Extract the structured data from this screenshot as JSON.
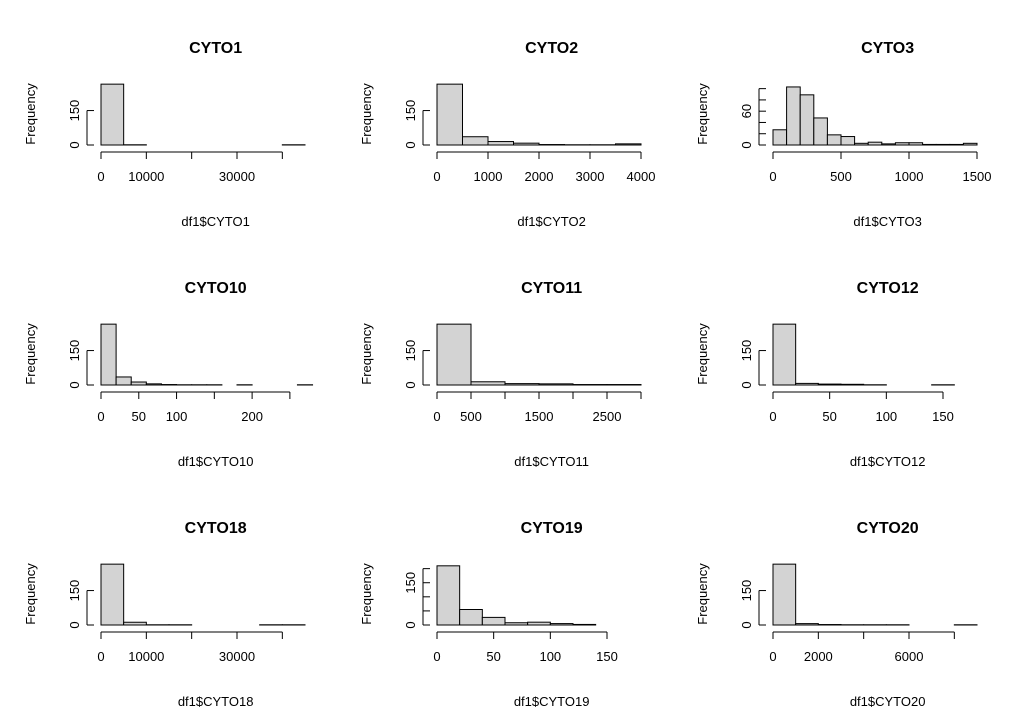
{
  "colors": {
    "bar_fill": "#d3d3d3",
    "stroke": "#000000",
    "background": "#ffffff"
  },
  "chart_data": [
    {
      "type": "bar",
      "title": "CYTO1",
      "xlabel": "df1$CYTO1",
      "ylabel": "Frequency",
      "xlim": [
        0,
        45000
      ],
      "ylim": [
        0,
        270
      ],
      "xticks": [
        0,
        10000,
        20000,
        30000,
        40000
      ],
      "xtick_labels": [
        "0",
        "10000",
        "",
        "30000",
        ""
      ],
      "yticks": [
        0,
        150
      ],
      "ytick_labels": [
        "0",
        "150"
      ],
      "bins": [
        0,
        5000,
        10000,
        15000,
        20000,
        25000,
        30000,
        35000,
        40000,
        45000
      ],
      "counts": [
        265,
        1,
        0,
        0,
        0,
        0,
        0,
        0,
        1
      ],
      "grid": false
    },
    {
      "type": "bar",
      "title": "CYTO2",
      "xlabel": "df1$CYTO2",
      "ylabel": "Frequency",
      "xlim": [
        0,
        4000
      ],
      "ylim": [
        0,
        270
      ],
      "xticks": [
        0,
        1000,
        2000,
        3000,
        4000
      ],
      "xtick_labels": [
        "0",
        "1000",
        "2000",
        "3000",
        "4000"
      ],
      "yticks": [
        0,
        150
      ],
      "ytick_labels": [
        "0",
        "150"
      ],
      "bins": [
        0,
        500,
        1000,
        1500,
        2000,
        2500,
        3000,
        3500,
        4000
      ],
      "counts": [
        265,
        36,
        15,
        8,
        2,
        1,
        1,
        5
      ],
      "grid": false
    },
    {
      "type": "bar",
      "title": "CYTO3",
      "xlabel": "df1$CYTO3",
      "ylabel": "Frequency",
      "xlim": [
        0,
        1500
      ],
      "ylim": [
        0,
        110
      ],
      "xticks": [
        0,
        500,
        1000,
        1500
      ],
      "xtick_labels": [
        "0",
        "500",
        "1000",
        "1500"
      ],
      "yticks": [
        0,
        20,
        40,
        60,
        80,
        100
      ],
      "ytick_labels": [
        "0",
        "",
        "",
        "60",
        "",
        ""
      ],
      "bins": [
        0,
        100,
        200,
        300,
        400,
        500,
        600,
        700,
        800,
        900,
        1000,
        1100,
        1200,
        1300,
        1400,
        1500
      ],
      "counts": [
        27,
        103,
        89,
        48,
        18,
        15,
        3,
        5,
        2,
        4,
        4,
        1,
        1,
        1,
        3
      ],
      "grid": false
    },
    {
      "type": "bar",
      "title": "CYTO10",
      "xlabel": "df1$CYTO10",
      "ylabel": "Frequency",
      "xlim": [
        0,
        270
      ],
      "ylim": [
        0,
        270
      ],
      "xticks": [
        0,
        50,
        100,
        150,
        200,
        250
      ],
      "xtick_labels": [
        "0",
        "50",
        "100",
        "",
        "200",
        ""
      ],
      "yticks": [
        0,
        150
      ],
      "ytick_labels": [
        "0",
        "150"
      ],
      "bins": [
        0,
        20,
        40,
        60,
        80,
        100,
        120,
        140,
        160,
        180,
        200,
        220,
        240,
        260,
        280
      ],
      "counts": [
        265,
        35,
        13,
        5,
        2,
        1,
        1,
        1,
        0,
        1,
        0,
        0,
        0,
        1
      ],
      "grid": false
    },
    {
      "type": "bar",
      "title": "CYTO11",
      "xlabel": "df1$CYTO11",
      "ylabel": "Frequency",
      "xlim": [
        0,
        3000
      ],
      "ylim": [
        0,
        270
      ],
      "xticks": [
        0,
        500,
        1000,
        1500,
        2000,
        2500,
        3000
      ],
      "xtick_labels": [
        "0",
        "500",
        "",
        "1500",
        "",
        "2500",
        ""
      ],
      "yticks": [
        0,
        150
      ],
      "ytick_labels": [
        "0",
        "150"
      ],
      "bins": [
        0,
        500,
        1000,
        1500,
        2000,
        2500,
        3000
      ],
      "counts": [
        265,
        14,
        6,
        5,
        2,
        2
      ],
      "grid": false
    },
    {
      "type": "bar",
      "title": "CYTO12",
      "xlabel": "df1$CYTO12",
      "ylabel": "Frequency",
      "xlim": [
        0,
        180
      ],
      "ylim": [
        0,
        270
      ],
      "xticks": [
        0,
        50,
        100,
        150
      ],
      "xtick_labels": [
        "0",
        "50",
        "100",
        "150"
      ],
      "yticks": [
        0,
        150
      ],
      "ytick_labels": [
        "0",
        "150"
      ],
      "bins": [
        0,
        20,
        40,
        60,
        80,
        100,
        120,
        140,
        160
      ],
      "counts": [
        265,
        7,
        4,
        3,
        1,
        0,
        0,
        1
      ],
      "grid": false
    },
    {
      "type": "bar",
      "title": "CYTO18",
      "xlabel": "df1$CYTO18",
      "ylabel": "Frequency",
      "xlim": [
        0,
        45000
      ],
      "ylim": [
        0,
        270
      ],
      "xticks": [
        0,
        10000,
        20000,
        30000,
        40000
      ],
      "xtick_labels": [
        "0",
        "10000",
        "",
        "30000",
        ""
      ],
      "yticks": [
        0,
        150
      ],
      "ytick_labels": [
        "0",
        "150"
      ],
      "bins": [
        0,
        5000,
        10000,
        15000,
        20000,
        25000,
        30000,
        35000,
        40000,
        45000
      ],
      "counts": [
        265,
        12,
        1,
        1,
        0,
        0,
        0,
        1,
        1
      ],
      "grid": false
    },
    {
      "type": "bar",
      "title": "CYTO19",
      "xlabel": "df1$CYTO19",
      "ylabel": "Frequency",
      "xlim": [
        0,
        180
      ],
      "ylim": [
        0,
        220
      ],
      "xticks": [
        0,
        50,
        100,
        150
      ],
      "xtick_labels": [
        "0",
        "50",
        "100",
        "150"
      ],
      "yticks": [
        0,
        50,
        100,
        150,
        200
      ],
      "ytick_labels": [
        "0",
        "",
        "",
        "150",
        ""
      ],
      "bins": [
        0,
        20,
        40,
        60,
        80,
        100,
        120,
        140
      ],
      "counts": [
        210,
        55,
        27,
        8,
        10,
        5,
        2
      ],
      "grid": false
    },
    {
      "type": "bar",
      "title": "CYTO20",
      "xlabel": "df1$CYTO20",
      "ylabel": "Frequency",
      "xlim": [
        0,
        9000
      ],
      "ylim": [
        0,
        270
      ],
      "xticks": [
        0,
        2000,
        4000,
        6000,
        8000
      ],
      "xtick_labels": [
        "0",
        "2000",
        "",
        "6000",
        ""
      ],
      "yticks": [
        0,
        150
      ],
      "ytick_labels": [
        "0",
        "150"
      ],
      "bins": [
        0,
        1000,
        2000,
        3000,
        4000,
        5000,
        6000,
        7000,
        8000,
        9000
      ],
      "counts": [
        265,
        6,
        2,
        1,
        1,
        1,
        0,
        0,
        1
      ],
      "grid": false
    }
  ]
}
